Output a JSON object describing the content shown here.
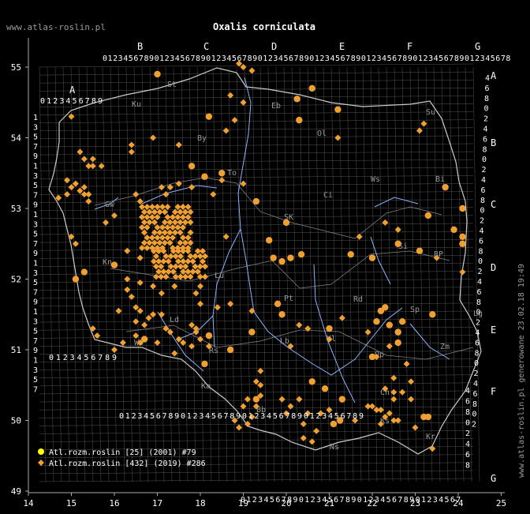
{
  "watermark_top": "www.atlas-roslin.pl",
  "title": "Oxalis corniculata",
  "side_text": "www.atlas-roslin.pl generowane 23.02.18 19:49",
  "x_ticks": [
    "14",
    "15",
    "16",
    "17",
    "18",
    "19",
    "20",
    "21",
    "22",
    "23",
    "24",
    "25"
  ],
  "y_ticks": [
    "55",
    "54",
    "53",
    "52",
    "51",
    "50",
    "49"
  ],
  "square_letters_top": [
    "B",
    "C",
    "D",
    "E",
    "F",
    "G"
  ],
  "square_letter_a": "A",
  "square_letters_right": [
    "A",
    "B",
    "C",
    "D",
    "E",
    "F",
    "G"
  ],
  "top_digits": "0123456789012345678901234567890123456789012345678901234567890123456789012345678",
  "a_digits": "0123456789",
  "w_digits": "0123456789",
  "bottom_digits_left": "0123456789012345678901234567890123456789",
  "bottom_digits_right": "01234567890123456789012345678901234567",
  "right_digits_a": [
    "4",
    "6",
    "8",
    "0",
    "2",
    "4",
    "6",
    "8",
    "0",
    "2",
    "4",
    "6",
    "8",
    "0",
    "2",
    "4",
    "6",
    "8",
    "0",
    "2",
    "4",
    "6",
    "8",
    "0",
    "2",
    "4",
    "6",
    "8",
    "0",
    "2",
    "4",
    "6",
    "8",
    "0",
    "2"
  ],
  "right_digits_f": [
    "4",
    "6",
    "8",
    "0",
    "2",
    "4",
    "6",
    "8"
  ],
  "left_digits": [
    "1",
    "3",
    "5",
    "7",
    "9",
    "1",
    "3",
    "5",
    "7",
    "9",
    "1",
    "3",
    "5",
    "7",
    "9",
    "1",
    "3",
    "5",
    "7",
    "9",
    "1",
    "3",
    "5",
    "7",
    "9",
    "1",
    "3",
    "5",
    "7"
  ],
  "region_labels": [
    "St",
    "Ku",
    "Eb",
    "Ol",
    "Su",
    "By",
    "Ws",
    "Bi",
    "To",
    "Ci",
    "Gw",
    "SK",
    "Si",
    "BP",
    "Kn",
    "Lu",
    "Pt",
    "Rd",
    "Ld",
    "Sp",
    "Wb",
    "Lg",
    "Kl",
    "Lb",
    "Zm",
    "Rs",
    "Op",
    "Ka",
    "Ch",
    "Bb",
    "Ks",
    "Ns",
    "Kr"
  ],
  "legend": [
    {
      "label": "Atl.rozm.roslin [25] (2001) #79",
      "color": "#ffff00",
      "shape": "circle"
    },
    {
      "label": "Atl.rozm.roslin [432] (2019) #286",
      "color": "#f0a030",
      "shape": "diamond"
    }
  ],
  "colors": {
    "background": "#000000",
    "grid": "#777777",
    "rivers": "#8ab4ff",
    "borders": "#cccccc",
    "points": "#f0a030",
    "legend_old": "#ffff00"
  },
  "records": {
    "circles": [
      [
        17.0,
        54.9
      ],
      [
        20.6,
        54.7
      ],
      [
        20.25,
        54.55
      ],
      [
        21.2,
        54.4
      ],
      [
        20.3,
        54.25
      ],
      [
        18.2,
        54.3
      ],
      [
        17.8,
        53.6
      ],
      [
        18.5,
        53.5
      ],
      [
        18.1,
        53.45
      ],
      [
        19.3,
        53.1
      ],
      [
        20.0,
        52.8
      ],
      [
        19.6,
        52.55
      ],
      [
        19.7,
        52.3
      ],
      [
        19.9,
        52.25
      ],
      [
        20.1,
        52.3
      ],
      [
        20.35,
        52.35
      ],
      [
        21.5,
        52.35
      ],
      [
        22.0,
        52.3
      ],
      [
        22.6,
        52.5
      ],
      [
        23.1,
        52.4
      ],
      [
        16.0,
        52.2
      ],
      [
        15.3,
        52.1
      ],
      [
        15.1,
        52.0
      ],
      [
        19.8,
        51.65
      ],
      [
        19.9,
        51.5
      ],
      [
        21.0,
        51.3
      ],
      [
        22.1,
        51.4
      ],
      [
        22.6,
        51.25
      ],
      [
        22.6,
        51.1
      ],
      [
        22.4,
        51.35
      ],
      [
        22.0,
        50.9
      ],
      [
        16.7,
        51.15
      ],
      [
        18.2,
        51.2
      ],
      [
        18.7,
        51.0
      ],
      [
        18.1,
        50.8
      ],
      [
        20.6,
        50.55
      ],
      [
        20.9,
        50.45
      ],
      [
        19.3,
        50.3
      ],
      [
        21.3,
        50.3
      ],
      [
        21.25,
        50.0
      ],
      [
        21.1,
        49.95
      ],
      [
        23.3,
        50.05
      ],
      [
        23.2,
        50.05
      ],
      [
        23.9,
        52.7
      ],
      [
        24.1,
        52.6
      ],
      [
        24.1,
        52.5
      ],
      [
        23.7,
        53.3
      ],
      [
        23.3,
        52.9
      ],
      [
        24.1,
        53.0
      ],
      [
        22.7,
        51.4
      ],
      [
        23.4,
        51.5
      ],
      [
        22.2,
        51.55
      ],
      [
        22.3,
        51.6
      ],
      [
        19.2,
        51.25
      ]
    ],
    "diamonds": [
      [
        18.9,
        55.05
      ],
      [
        19.0,
        55.0
      ],
      [
        19.2,
        54.95
      ],
      [
        18.7,
        54.6
      ],
      [
        19.0,
        54.5
      ],
      [
        18.8,
        54.25
      ],
      [
        18.6,
        54.1
      ],
      [
        17.5,
        53.9
      ],
      [
        16.4,
        53.9
      ],
      [
        16.4,
        53.8
      ],
      [
        16.9,
        54.0
      ],
      [
        21.2,
        54.0
      ],
      [
        23.2,
        54.2
      ],
      [
        23.1,
        54.1
      ],
      [
        15.0,
        54.3
      ],
      [
        15.2,
        53.8
      ],
      [
        15.3,
        53.7
      ],
      [
        15.4,
        53.6
      ],
      [
        15.5,
        53.7
      ],
      [
        15.5,
        53.6
      ],
      [
        15.7,
        53.6
      ],
      [
        14.9,
        53.4
      ],
      [
        15.0,
        53.3
      ],
      [
        15.1,
        53.35
      ],
      [
        15.2,
        53.25
      ],
      [
        15.3,
        53.3
      ],
      [
        15.3,
        53.2
      ],
      [
        15.4,
        53.2
      ],
      [
        14.7,
        53.15
      ],
      [
        14.9,
        53.2
      ],
      [
        16.5,
        53.2
      ],
      [
        16.6,
        53.1
      ],
      [
        17.1,
        53.3
      ],
      [
        17.3,
        53.3
      ],
      [
        17.5,
        53.35
      ],
      [
        17.8,
        53.3
      ],
      [
        18.3,
        53.2
      ],
      [
        18.5,
        53.4
      ],
      [
        19.0,
        53.35
      ],
      [
        17.2,
        53.2
      ],
      [
        18.6,
        52.6
      ],
      [
        15.4,
        53.1
      ],
      [
        16.0,
        52.9
      ],
      [
        15.8,
        52.8
      ],
      [
        15.1,
        52.5
      ],
      [
        15.0,
        52.6
      ],
      [
        16.3,
        52.4
      ],
      [
        16.6,
        52.3
      ],
      [
        16.3,
        52.0
      ],
      [
        16.6,
        51.95
      ],
      [
        16.9,
        51.9
      ],
      [
        17.4,
        51.9
      ],
      [
        17.9,
        51.8
      ],
      [
        18.0,
        51.9
      ],
      [
        17.1,
        51.8
      ],
      [
        18.0,
        51.65
      ],
      [
        18.7,
        51.65
      ],
      [
        19.2,
        51.55
      ],
      [
        20.3,
        51.35
      ],
      [
        20.5,
        51.3
      ],
      [
        21.0,
        51.15
      ],
      [
        20.1,
        51.05
      ],
      [
        21.3,
        51.45
      ],
      [
        21.9,
        51.25
      ],
      [
        22.4,
        51.05
      ],
      [
        22.8,
        50.8
      ],
      [
        22.1,
        50.9
      ],
      [
        22.5,
        50.6
      ],
      [
        22.9,
        50.55
      ],
      [
        22.3,
        50.45
      ],
      [
        22.5,
        50.4
      ],
      [
        22.7,
        50.4
      ],
      [
        22.5,
        50.3
      ],
      [
        22.9,
        50.3
      ],
      [
        22.4,
        50.1
      ],
      [
        22.5,
        50.0
      ],
      [
        22.6,
        50.0
      ],
      [
        22.2,
        50.15
      ],
      [
        22.1,
        50.15
      ],
      [
        21.9,
        50.2
      ],
      [
        22.0,
        50.2
      ],
      [
        22.3,
        50.05
      ],
      [
        22.2,
        49.95
      ],
      [
        21.6,
        50.0
      ],
      [
        21.0,
        50.15
      ],
      [
        20.8,
        50.1
      ],
      [
        20.5,
        50.1
      ],
      [
        20.3,
        50.3
      ],
      [
        20.1,
        50.2
      ],
      [
        19.9,
        50.3
      ],
      [
        19.3,
        50.2
      ],
      [
        19.1,
        50.3
      ],
      [
        19.4,
        50.35
      ],
      [
        19.4,
        50.5
      ],
      [
        19.3,
        50.55
      ],
      [
        19.4,
        50.7
      ],
      [
        20.0,
        50.1
      ],
      [
        20.4,
        49.95
      ],
      [
        20.7,
        49.85
      ],
      [
        20.6,
        49.7
      ],
      [
        20.4,
        49.75
      ],
      [
        19.0,
        50.2
      ],
      [
        18.8,
        50.0
      ],
      [
        18.9,
        49.9
      ],
      [
        19.1,
        49.95
      ],
      [
        19.2,
        50.05
      ],
      [
        23.4,
        49.6
      ],
      [
        23.0,
        49.9
      ],
      [
        24.1,
        52.1
      ],
      [
        23.5,
        52.3
      ],
      [
        22.6,
        52.7
      ],
      [
        22.3,
        52.8
      ],
      [
        21.7,
        52.6
      ],
      [
        16.3,
        51.85
      ],
      [
        16.4,
        51.75
      ],
      [
        16.5,
        51.6
      ],
      [
        16.6,
        51.55
      ],
      [
        16.8,
        51.45
      ],
      [
        16.9,
        51.5
      ],
      [
        17.1,
        51.5
      ],
      [
        16.5,
        51.4
      ],
      [
        16.7,
        51.35
      ],
      [
        16.5,
        51.2
      ],
      [
        16.6,
        51.1
      ],
      [
        17.0,
        51.1
      ],
      [
        17.3,
        51.25
      ],
      [
        17.5,
        51.15
      ],
      [
        17.6,
        51.1
      ],
      [
        17.8,
        51.05
      ],
      [
        18.0,
        51.15
      ],
      [
        18.2,
        51.05
      ],
      [
        16.1,
        51.55
      ],
      [
        15.5,
        51.3
      ],
      [
        15.6,
        51.2
      ],
      [
        16.0,
        51.0
      ],
      [
        16.2,
        51.1
      ],
      [
        17.2,
        51.3
      ],
      [
        17.8,
        51.35
      ],
      [
        17.9,
        51.25
      ],
      [
        17.4,
        50.95
      ],
      [
        17.9,
        51.3
      ],
      [
        18.4,
        51.6
      ]
    ]
  }
}
